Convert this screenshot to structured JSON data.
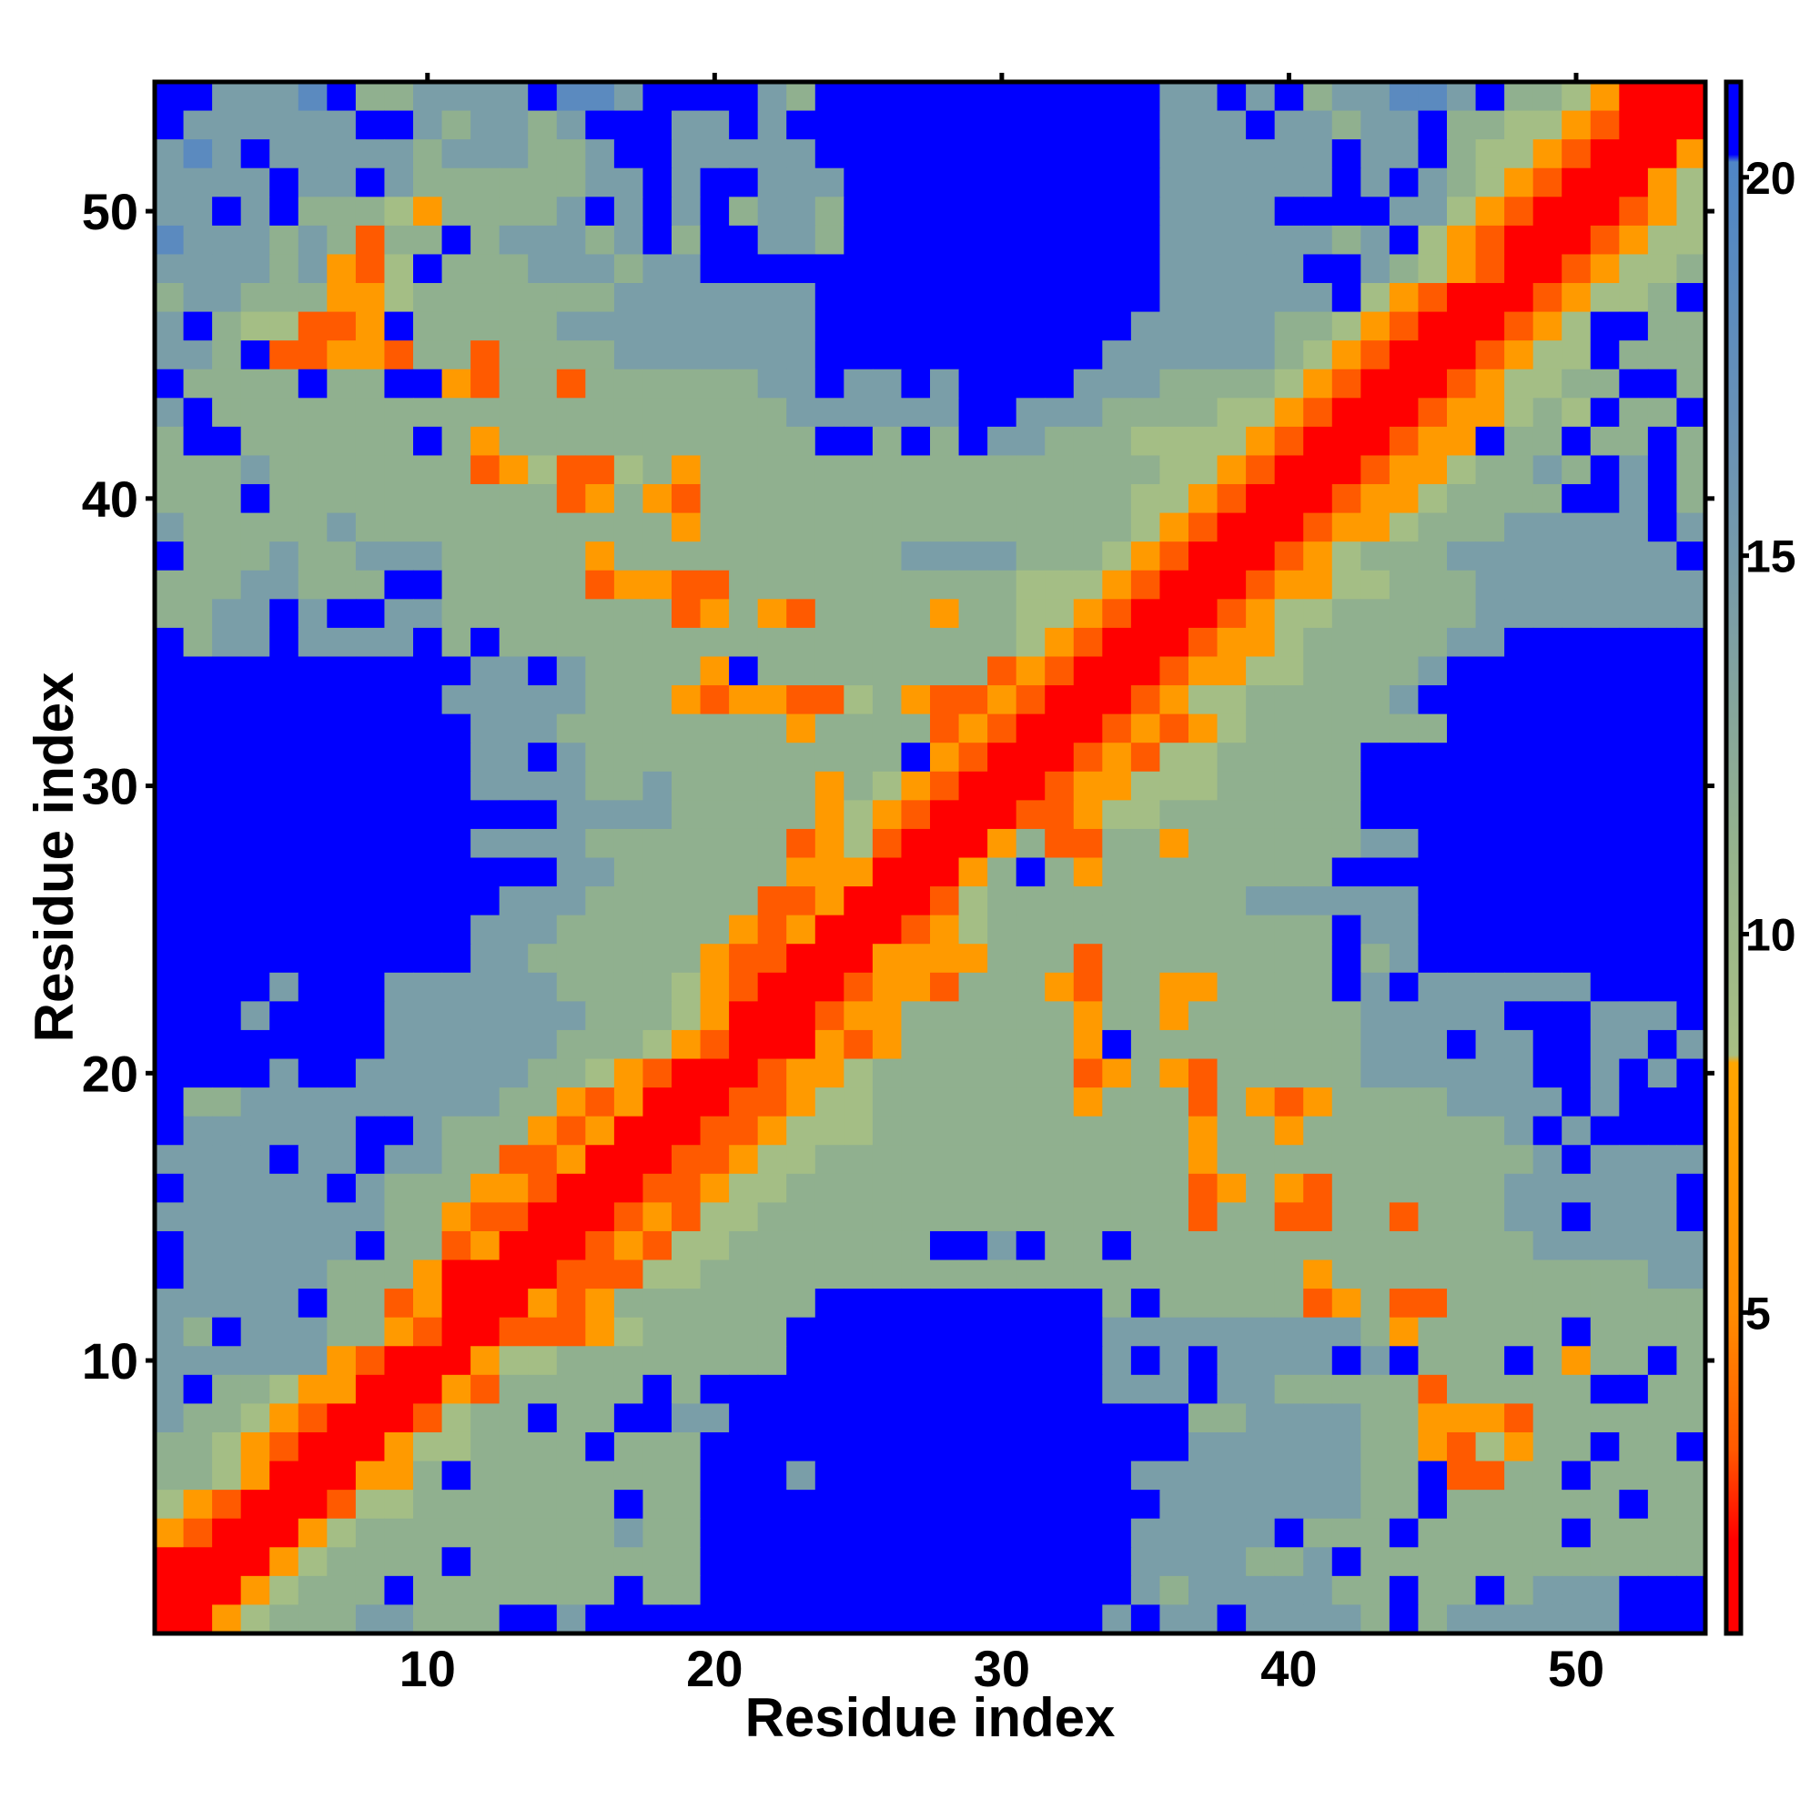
{
  "chart_data": {
    "type": "heatmap",
    "title": "",
    "xlabel": "Residue index",
    "ylabel": "Residue index",
    "n": 54,
    "x_range": [
      0.5,
      54.5
    ],
    "y_range": [
      0.5,
      54.5
    ],
    "x_ticks": [
      10,
      20,
      30,
      40,
      50
    ],
    "y_ticks": [
      10,
      20,
      30,
      40,
      50
    ],
    "grid": false,
    "levels": [
      {
        "code": "0",
        "value": 1.5,
        "color": "#ff0000"
      },
      {
        "code": "1",
        "value": 3.5,
        "color": "#ff5a00"
      },
      {
        "code": "2",
        "value": 6.5,
        "color": "#ff9a00"
      },
      {
        "code": "3",
        "value": 9.5,
        "color": "#a4be85"
      },
      {
        "code": "4",
        "value": 12.5,
        "color": "#90b08f"
      },
      {
        "code": "5",
        "value": 15.5,
        "color": "#7a9ea8"
      },
      {
        "code": "6",
        "value": 18.5,
        "color": "#5b8abf"
      },
      {
        "code": "7",
        "value": 21,
        "color": "#0000ff"
      }
    ],
    "rows_top_to_bottom": [
      "775556744555576657777547777777777775575745566574432000",
      "755555577545545777557577777777777775557554557443321000",
      "565755555455544577555557777777777775555557557433210002",
      "555575575444444557577555777777777775555557575432100023",
      "557574443244445757574554777777777775555777755321000123",
      "655545414474555457477554777777777775555554573210001233",
      "555545213744455545577777777777777775555577543210012334",
      "455444223444444455555557777777777775555557321000123347",
      "574331127444445555555557777777777755555443210001237744",
      "554711221441444455555557777777777555555432100012337444",
      "744447447721441444444557557577775554444321000123344774",
      "574444444444444444444455555577555444433210001223437447",
      "477444444742444444444447747475544433332100012274474474",
      "444544444441231134244444444444444443321000122344547574",
      "444744444444441242144444444444444433210001223444477574",
      "544444544444444444244444444444444432100012234445555575",
      "744454455544444244444444445555444321000123444555555557",
      "444554447744444122114444444444333210001223344455555555",
      "445575775544444444124214444244332100012334444455555555",
      "745575555747444444444444444444321000122344444557777777",
      "777777777775575444427444444441210001223344445777777777",
      "777777777755555444212211342112100012334444457777777777",
      "777777777775554444444424444121000121234444444777777777",
      "777777777775575444444444447210001213344444777777777777",
      "777777777775555445444442432100012233344444777777777777",
      "777777777777775555444442321000112334444444777777777777",
      "777777777775555444444412310002411442444444557777777777",
      "777777777777775544444422200024742444444447777777777777",
      "777777777777555444444112000134444444445555557777777777",
      "777777777775554444442120001234444444444447557777777777",
      "777777777775544444421100022224441444444447457777777777",
      "777757775555554444321000122144421442244447575555557777",
      "777577775555555444320001224444442442444444555557775557",
      "777777775555554443210002124444442744444444555755775575",
      "777757755555544321000122344444441242144444555555775757",
      "744555555555442120001123344444442444142124444555575777",
      "755555577544421200011233344444444444244244444445757777",
      "555575575544112000112334444444444444244444444444575555",
      "755555754442210001123344444444444444124214444445555557",
      "555555554421100012133444444444444444144114414445575557",
      "755555574412000121334444444775744744444444444444555555",
      "755555444200001113344444444444444444444424444444444455",
      "555557441200021244444447777777777474444412411444444444",
      "547555442100111234444477777777777555555555424444474444",
      "555555210002334444444477777777777575755557574447424474",
      "574432200021444447477777777777777555755444441444447744",
      "544321000134474477557777777777777777445555442221444444",
      "443210002334444744477777777777777777555555442132447447",
      "443200022474444444477757777777777755555555447114474444",
      "321000133444444474477777777777777775555555447444444744",
      "210002344444444454477777777777777755555744474444474444",
      "000023444474444444477777777777777755554457444444444444",
      "000234447444444474477777777777777754555554474474555777",
      "002344455444775777777777777777777575575555474555555777"
    ],
    "colorbar": {
      "range": [
        0.76,
        21.26
      ],
      "ticks": [
        5,
        10,
        15,
        20
      ],
      "stops": [
        {
          "value": 0.76,
          "color": "#ff0000"
        },
        {
          "value": 2.0,
          "color": "#ff0000"
        },
        {
          "value": 3.2,
          "color": "#ff5a00"
        },
        {
          "value": 5.0,
          "color": "#ff8c00"
        },
        {
          "value": 8.3,
          "color": "#ffa500"
        },
        {
          "value": 8.4,
          "color": "#a8bf84"
        },
        {
          "value": 11.0,
          "color": "#96b38c"
        },
        {
          "value": 14.0,
          "color": "#7d9fa4"
        },
        {
          "value": 17.0,
          "color": "#6690b8"
        },
        {
          "value": 20.2,
          "color": "#4f86c6"
        },
        {
          "value": 20.3,
          "color": "#0000ff"
        },
        {
          "value": 21.26,
          "color": "#0000ff"
        }
      ]
    }
  }
}
